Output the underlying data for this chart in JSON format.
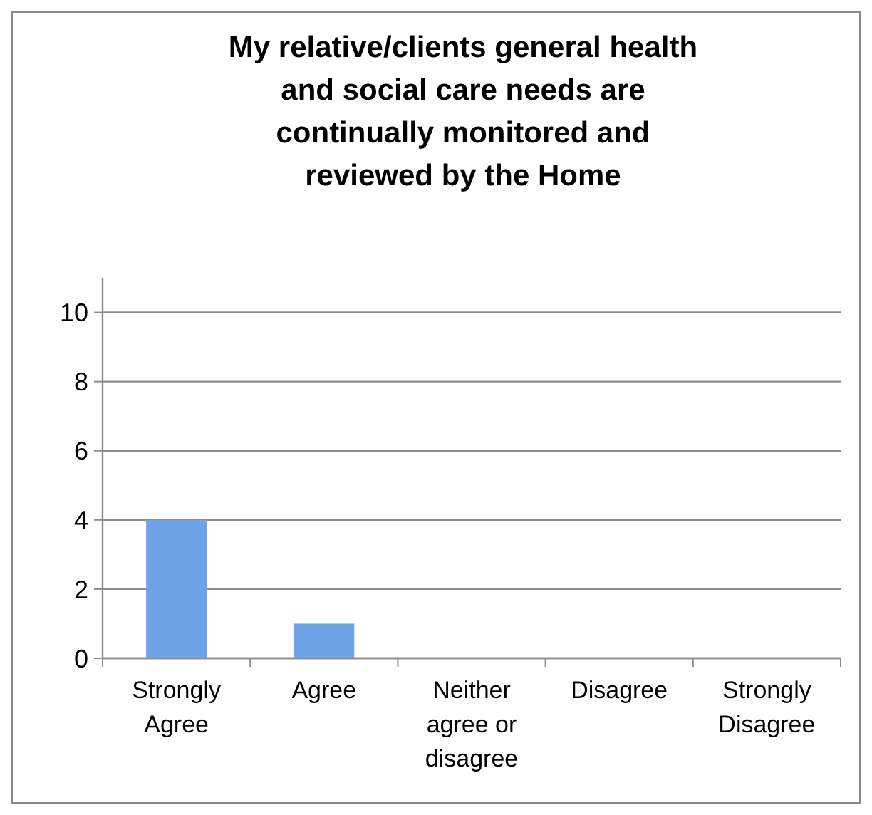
{
  "chart_data": {
    "type": "bar",
    "title": "My relative/clients general health and social care needs are continually monitored and reviewed by the Home",
    "categories": [
      "Strongly Agree",
      "Agree",
      "Neither agree or disagree",
      "Disagree",
      "Strongly Disagree"
    ],
    "values": [
      4,
      1,
      0,
      0,
      0
    ],
    "color": "#6fa3e8",
    "ylim": [
      0,
      11
    ],
    "yticks": [
      0,
      2,
      4,
      6,
      8,
      10
    ],
    "grid": "y"
  }
}
